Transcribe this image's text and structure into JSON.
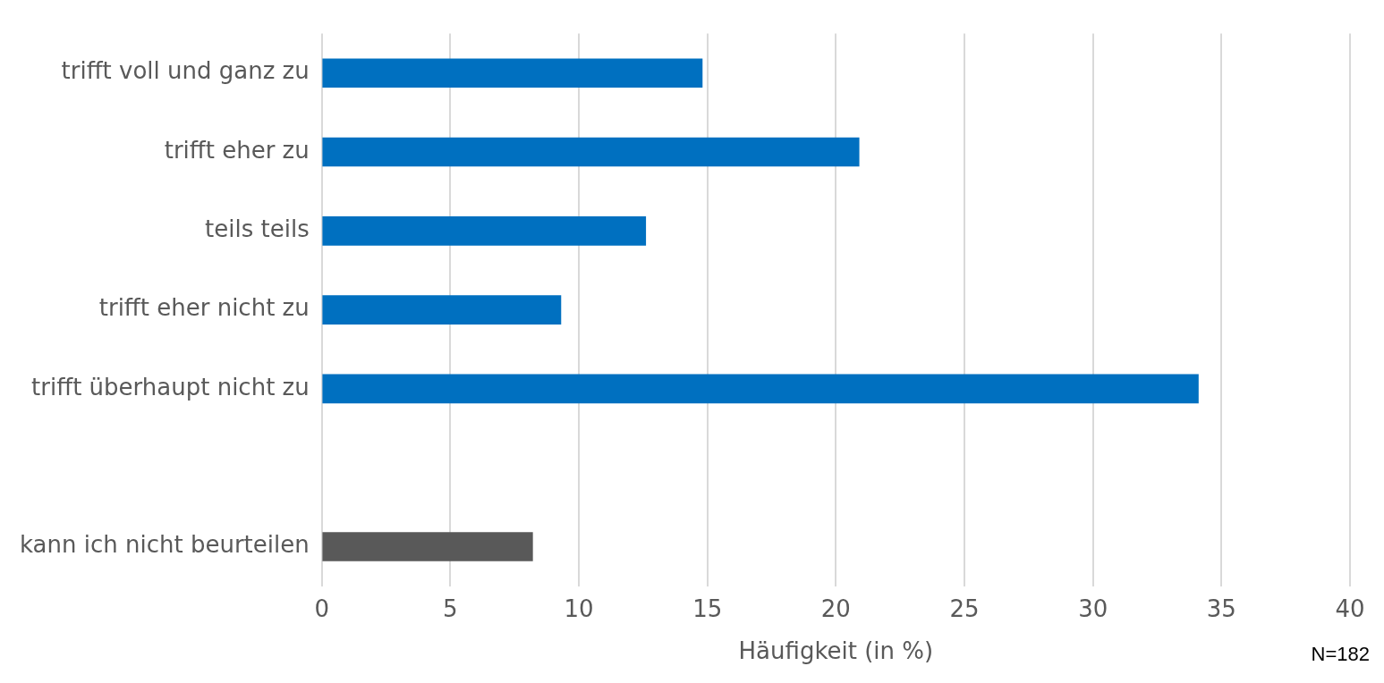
{
  "chart_data": {
    "type": "bar",
    "orientation": "horizontal",
    "xlabel": "Häufigkeit (in %)",
    "categories": [
      "trifft voll und ganz zu",
      "trifft eher zu",
      "teils teils",
      "trifft eher nicht zu",
      "trifft überhaupt nicht zu",
      null,
      "kann ich nicht beurteilen"
    ],
    "values": [
      14.8,
      20.9,
      12.6,
      9.3,
      34.1,
      null,
      8.2
    ],
    "colors": [
      "#0070c0",
      "#0070c0",
      "#0070c0",
      "#0070c0",
      "#0070c0",
      "#0070c0",
      "#595959"
    ],
    "xlim": [
      0,
      40
    ],
    "xticks": [
      0,
      5,
      10,
      15,
      20,
      25,
      30,
      35,
      40
    ],
    "grid": "x",
    "annotations": [
      "N=182"
    ]
  }
}
